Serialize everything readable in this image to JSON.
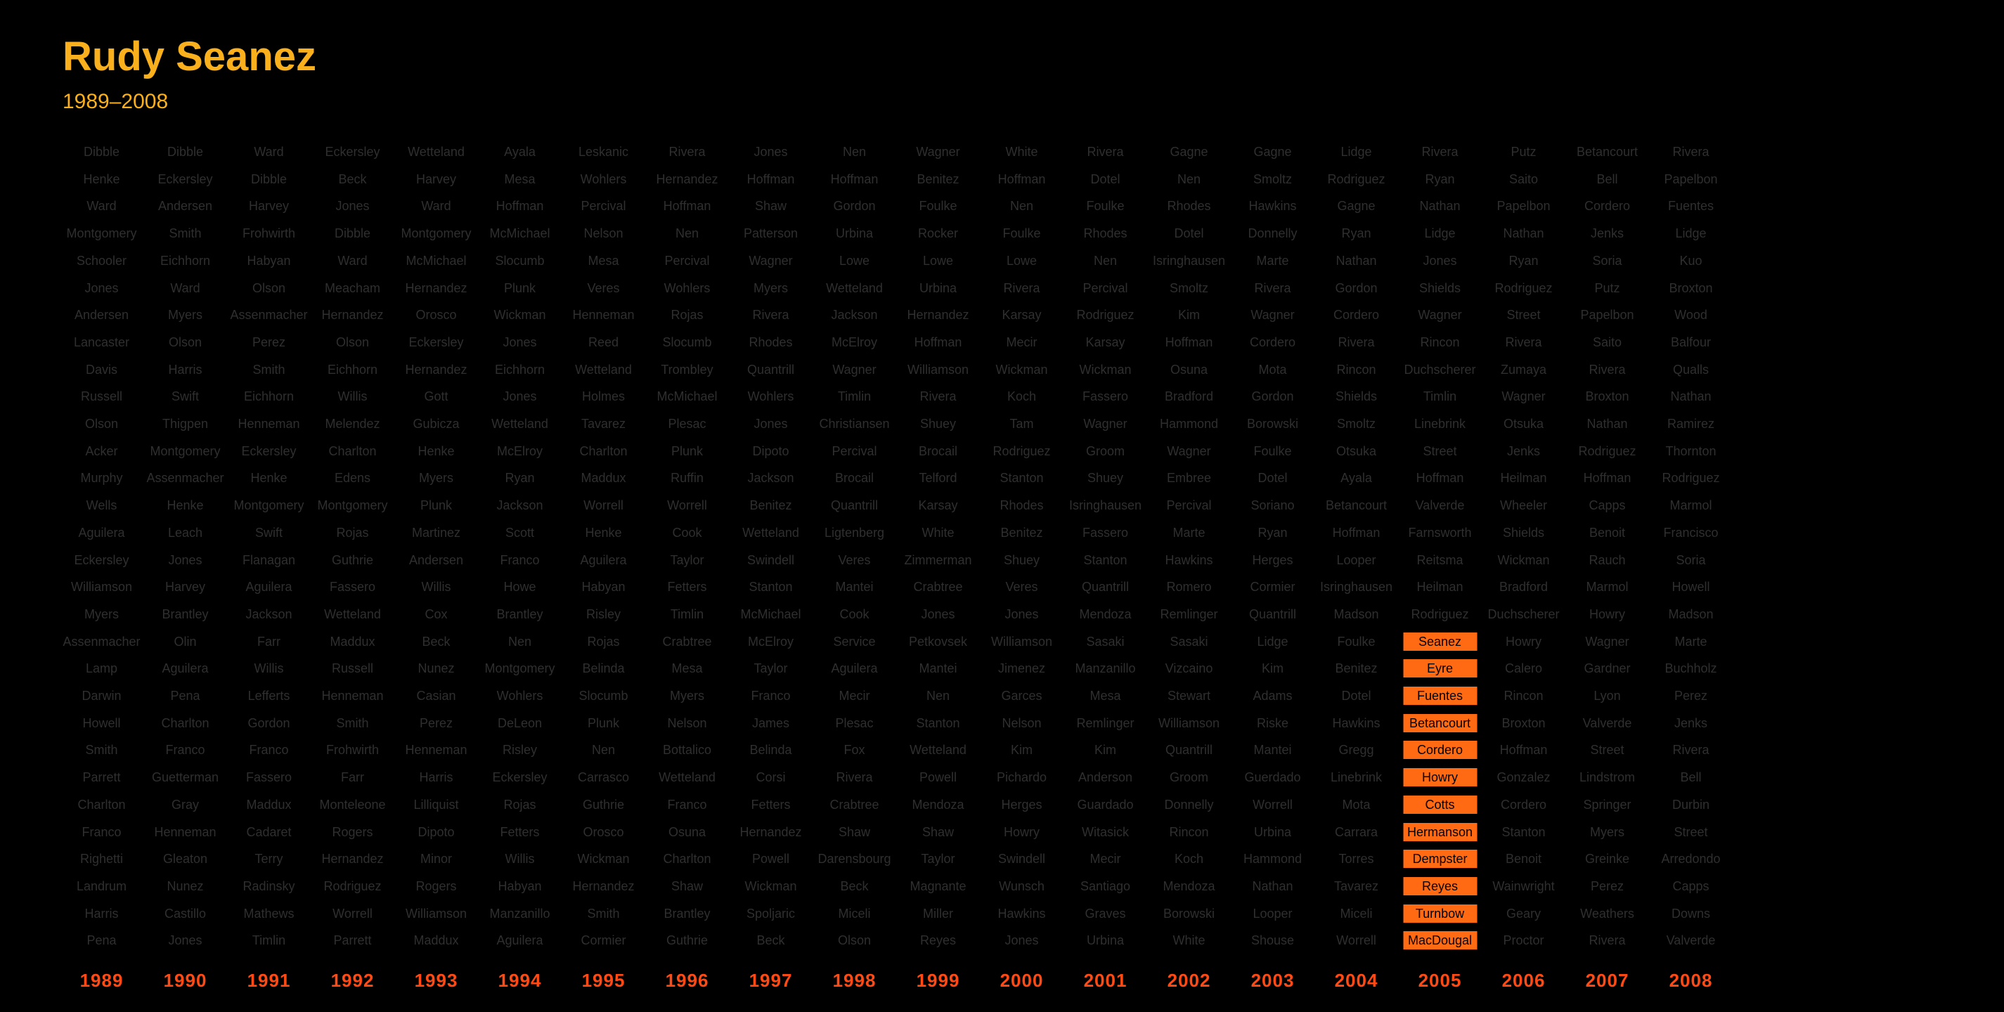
{
  "header": {
    "title": "Rudy Seanez",
    "subtitle": "1989–2008"
  },
  "colors": {
    "title": "#F9B01C",
    "name_text": "#2f2f2f",
    "highlight_bg": "#FF6A13",
    "highlight_text": "#000000",
    "year_label": "#FF4A14",
    "background": "#000000"
  },
  "highlight_name": "Seanez",
  "columns": [
    {
      "year": "1989",
      "names": [
        "Dibble",
        "Henke",
        "Ward",
        "Montgomery",
        "Schooler",
        "Jones",
        "Andersen",
        "Lancaster",
        "Davis",
        "Russell",
        "Olson",
        "Acker",
        "Murphy",
        "Wells",
        "Aguilera",
        "Eckersley",
        "Williamson",
        "Myers",
        "Assenmacher",
        "Lamp",
        "Darwin",
        "Howell",
        "Smith",
        "Parrett",
        "Charlton",
        "Franco",
        "Righetti",
        "Landrum",
        "Harris",
        "Pena"
      ],
      "highlight_from": null
    },
    {
      "year": "1990",
      "names": [
        "Dibble",
        "Eckersley",
        "Andersen",
        "Smith",
        "Eichhorn",
        "Ward",
        "Myers",
        "Olson",
        "Harris",
        "Swift",
        "Thigpen",
        "Montgomery",
        "Assenmacher",
        "Henke",
        "Leach",
        "Jones",
        "Harvey",
        "Brantley",
        "Olin",
        "Aguilera",
        "Pena",
        "Charlton",
        "Franco",
        "Guetterman",
        "Gray",
        "Henneman",
        "Gleaton",
        "Nunez",
        "Castillo",
        "Jones"
      ],
      "highlight_from": null
    },
    {
      "year": "1991",
      "names": [
        "Ward",
        "Dibble",
        "Harvey",
        "Frohwirth",
        "Habyan",
        "Olson",
        "Assenmacher",
        "Perez",
        "Smith",
        "Eichhorn",
        "Henneman",
        "Eckersley",
        "Henke",
        "Montgomery",
        "Swift",
        "Flanagan",
        "Aguilera",
        "Jackson",
        "Farr",
        "Willis",
        "Lefferts",
        "Gordon",
        "Franco",
        "Fassero",
        "Maddux",
        "Cadaret",
        "Terry",
        "Radinsky",
        "Mathews",
        "Timlin"
      ],
      "highlight_from": null
    },
    {
      "year": "1992",
      "names": [
        "Eckersley",
        "Beck",
        "Jones",
        "Dibble",
        "Ward",
        "Meacham",
        "Hernandez",
        "Olson",
        "Eichhorn",
        "Willis",
        "Melendez",
        "Charlton",
        "Edens",
        "Montgomery",
        "Rojas",
        "Guthrie",
        "Fassero",
        "Wetteland",
        "Maddux",
        "Russell",
        "Henneman",
        "Smith",
        "Frohwirth",
        "Farr",
        "Monteleone",
        "Rogers",
        "Hernandez",
        "Rodriguez",
        "Worrell",
        "Parrett"
      ],
      "highlight_from": null
    },
    {
      "year": "1993",
      "names": [
        "Wetteland",
        "Harvey",
        "Ward",
        "Montgomery",
        "McMichael",
        "Hernandez",
        "Orosco",
        "Eckersley",
        "Hernandez",
        "Gott",
        "Gubicza",
        "Henke",
        "Myers",
        "Plunk",
        "Martinez",
        "Andersen",
        "Willis",
        "Cox",
        "Beck",
        "Nunez",
        "Casian",
        "Perez",
        "Henneman",
        "Harris",
        "Lilliquist",
        "Dipoto",
        "Minor",
        "Rogers",
        "Williamson",
        "Maddux"
      ],
      "highlight_from": null
    },
    {
      "year": "1994",
      "names": [
        "Ayala",
        "Mesa",
        "Hoffman",
        "McMichael",
        "Slocumb",
        "Plunk",
        "Wickman",
        "Jones",
        "Eichhorn",
        "Jones",
        "Wetteland",
        "McElroy",
        "Ryan",
        "Jackson",
        "Scott",
        "Franco",
        "Howe",
        "Brantley",
        "Nen",
        "Montgomery",
        "Wohlers",
        "DeLeon",
        "Risley",
        "Eckersley",
        "Rojas",
        "Fetters",
        "Willis",
        "Habyan",
        "Manzanillo",
        "Aguilera"
      ],
      "highlight_from": null
    },
    {
      "year": "1995",
      "names": [
        "Leskanic",
        "Wohlers",
        "Percival",
        "Nelson",
        "Mesa",
        "Veres",
        "Henneman",
        "Reed",
        "Wetteland",
        "Holmes",
        "Tavarez",
        "Charlton",
        "Maddux",
        "Worrell",
        "Henke",
        "Aguilera",
        "Habyan",
        "Risley",
        "Rojas",
        "Belinda",
        "Slocumb",
        "Plunk",
        "Nen",
        "Carrasco",
        "Guthrie",
        "Orosco",
        "Wickman",
        "Hernandez",
        "Smith",
        "Cormier"
      ],
      "highlight_from": null
    },
    {
      "year": "1996",
      "names": [
        "Rivera",
        "Hernandez",
        "Hoffman",
        "Nen",
        "Percival",
        "Wohlers",
        "Rojas",
        "Slocumb",
        "Trombley",
        "McMichael",
        "Plesac",
        "Plunk",
        "Ruffin",
        "Worrell",
        "Cook",
        "Taylor",
        "Fetters",
        "Timlin",
        "Crabtree",
        "Mesa",
        "Myers",
        "Nelson",
        "Bottalico",
        "Wetteland",
        "Franco",
        "Osuna",
        "Charlton",
        "Shaw",
        "Brantley",
        "Guthrie"
      ],
      "highlight_from": null
    },
    {
      "year": "1997",
      "names": [
        "Jones",
        "Hoffman",
        "Shaw",
        "Patterson",
        "Wagner",
        "Myers",
        "Rivera",
        "Rhodes",
        "Quantrill",
        "Wohlers",
        "Jones",
        "Dipoto",
        "Jackson",
        "Benitez",
        "Wetteland",
        "Swindell",
        "Stanton",
        "McMichael",
        "McElroy",
        "Taylor",
        "Franco",
        "James",
        "Belinda",
        "Corsi",
        "Fetters",
        "Hernandez",
        "Powell",
        "Wickman",
        "Spoljaric",
        "Beck"
      ],
      "highlight_from": null
    },
    {
      "year": "1998",
      "names": [
        "Nen",
        "Hoffman",
        "Gordon",
        "Urbina",
        "Lowe",
        "Wetteland",
        "Jackson",
        "McElroy",
        "Wagner",
        "Timlin",
        "Christiansen",
        "Percival",
        "Brocail",
        "Quantrill",
        "Ligtenberg",
        "Veres",
        "Mantei",
        "Cook",
        "Service",
        "Aguilera",
        "Mecir",
        "Plesac",
        "Fox",
        "Rivera",
        "Crabtree",
        "Shaw",
        "Darensbourg",
        "Beck",
        "Miceli",
        "Olson"
      ],
      "highlight_from": null
    },
    {
      "year": "1999",
      "names": [
        "Wagner",
        "Benitez",
        "Foulke",
        "Rocker",
        "Lowe",
        "Urbina",
        "Hernandez",
        "Hoffman",
        "Williamson",
        "Rivera",
        "Shuey",
        "Brocail",
        "Telford",
        "Karsay",
        "White",
        "Zimmerman",
        "Crabtree",
        "Jones",
        "Petkovsek",
        "Mantei",
        "Nen",
        "Stanton",
        "Wetteland",
        "Powell",
        "Mendoza",
        "Shaw",
        "Taylor",
        "Magnante",
        "Miller",
        "Reyes"
      ],
      "highlight_from": null
    },
    {
      "year": "2000",
      "names": [
        "White",
        "Hoffman",
        "Nen",
        "Foulke",
        "Lowe",
        "Rivera",
        "Karsay",
        "Mecir",
        "Wickman",
        "Koch",
        "Tam",
        "Rodriguez",
        "Stanton",
        "Rhodes",
        "Benitez",
        "Shuey",
        "Veres",
        "Jones",
        "Williamson",
        "Jimenez",
        "Garces",
        "Nelson",
        "Kim",
        "Pichardo",
        "Herges",
        "Howry",
        "Swindell",
        "Wunsch",
        "Hawkins",
        "Jones"
      ],
      "highlight_from": null
    },
    {
      "year": "2001",
      "names": [
        "Rivera",
        "Dotel",
        "Foulke",
        "Rhodes",
        "Nen",
        "Percival",
        "Rodriguez",
        "Karsay",
        "Wickman",
        "Fassero",
        "Wagner",
        "Groom",
        "Shuey",
        "Isringhausen",
        "Fassero",
        "Stanton",
        "Quantrill",
        "Mendoza",
        "Sasaki",
        "Manzanillo",
        "Mesa",
        "Remlinger",
        "Kim",
        "Anderson",
        "Guardado",
        "Witasick",
        "Mecir",
        "Santiago",
        "Graves",
        "Urbina"
      ],
      "highlight_from": null
    },
    {
      "year": "2002",
      "names": [
        "Gagne",
        "Nen",
        "Rhodes",
        "Dotel",
        "Isringhausen",
        "Smoltz",
        "Kim",
        "Hoffman",
        "Osuna",
        "Bradford",
        "Hammond",
        "Wagner",
        "Embree",
        "Percival",
        "Marte",
        "Hawkins",
        "Romero",
        "Remlinger",
        "Sasaki",
        "Vizcaino",
        "Stewart",
        "Williamson",
        "Quantrill",
        "Groom",
        "Donnelly",
        "Rincon",
        "Koch",
        "Mendoza",
        "Borowski",
        "White"
      ],
      "highlight_from": null
    },
    {
      "year": "2003",
      "names": [
        "Gagne",
        "Smoltz",
        "Hawkins",
        "Donnelly",
        "Marte",
        "Rivera",
        "Wagner",
        "Cordero",
        "Mota",
        "Gordon",
        "Borowski",
        "Foulke",
        "Dotel",
        "Soriano",
        "Ryan",
        "Herges",
        "Cormier",
        "Quantrill",
        "Lidge",
        "Kim",
        "Adams",
        "Riske",
        "Mantei",
        "Guerdado",
        "Worrell",
        "Urbina",
        "Hammond",
        "Nathan",
        "Looper",
        "Shouse"
      ],
      "highlight_from": null
    },
    {
      "year": "2004",
      "names": [
        "Lidge",
        "Rodriguez",
        "Gagne",
        "Ryan",
        "Nathan",
        "Gordon",
        "Cordero",
        "Rivera",
        "Rincon",
        "Shields",
        "Smoltz",
        "Otsuka",
        "Ayala",
        "Betancourt",
        "Hoffman",
        "Looper",
        "Isringhausen",
        "Madson",
        "Foulke",
        "Benitez",
        "Dotel",
        "Hawkins",
        "Gregg",
        "Linebrink",
        "Mota",
        "Carrara",
        "Torres",
        "Tavarez",
        "Miceli",
        "Worrell"
      ],
      "highlight_from": null
    },
    {
      "year": "2005",
      "names": [
        "Rivera",
        "Ryan",
        "Nathan",
        "Lidge",
        "Jones",
        "Shields",
        "Wagner",
        "Rincon",
        "Duchscherer",
        "Timlin",
        "Linebrink",
        "Street",
        "Hoffman",
        "Valverde",
        "Farnsworth",
        "Reitsma",
        "Heilman",
        "Rodriguez",
        "Seanez",
        "Eyre",
        "Fuentes",
        "Betancourt",
        "Cordero",
        "Howry",
        "Cotts",
        "Hermanson",
        "Dempster",
        "Reyes",
        "Turnbow",
        "MacDougal"
      ],
      "highlight_from": 18
    },
    {
      "year": "2006",
      "names": [
        "Putz",
        "Saito",
        "Papelbon",
        "Nathan",
        "Ryan",
        "Rodriguez",
        "Street",
        "Rivera",
        "Zumaya",
        "Wagner",
        "Otsuka",
        "Jenks",
        "Heilman",
        "Wheeler",
        "Shields",
        "Wickman",
        "Bradford",
        "Duchscherer",
        "Howry",
        "Calero",
        "Rincon",
        "Broxton",
        "Hoffman",
        "Gonzalez",
        "Cordero",
        "Stanton",
        "Benoit",
        "Wainwright",
        "Geary",
        "Proctor"
      ],
      "highlight_from": null
    },
    {
      "year": "2007",
      "names": [
        "Betancourt",
        "Bell",
        "Cordero",
        "Jenks",
        "Soria",
        "Putz",
        "Papelbon",
        "Saito",
        "Rivera",
        "Broxton",
        "Nathan",
        "Rodriguez",
        "Hoffman",
        "Capps",
        "Benoit",
        "Rauch",
        "Marmol",
        "Howry",
        "Wagner",
        "Gardner",
        "Lyon",
        "Valverde",
        "Street",
        "Lindstrom",
        "Springer",
        "Myers",
        "Greinke",
        "Perez",
        "Weathers",
        "Rivera"
      ],
      "highlight_from": null
    },
    {
      "year": "2008",
      "names": [
        "Rivera",
        "Papelbon",
        "Fuentes",
        "Lidge",
        "Kuo",
        "Broxton",
        "Wood",
        "Balfour",
        "Qualls",
        "Nathan",
        "Ramirez",
        "Thornton",
        "Rodriguez",
        "Marmol",
        "Francisco",
        "Soria",
        "Howell",
        "Madson",
        "Marte",
        "Buchholz",
        "Perez",
        "Jenks",
        "Rivera",
        "Bell",
        "Durbin",
        "Street",
        "Arredondo",
        "Capps",
        "Downs",
        "Valverde"
      ],
      "highlight_from": null
    }
  ]
}
